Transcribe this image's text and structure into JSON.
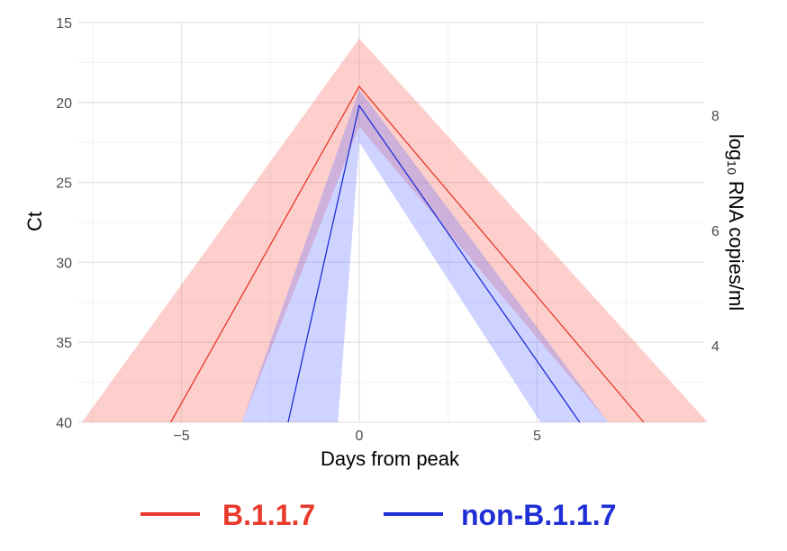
{
  "chart_data": {
    "type": "line",
    "xlabel": "Days from peak",
    "ylabel": "Ct",
    "y2label": "log₁₀ RNA copies/ml",
    "xlim": [
      -7.9,
      9.7
    ],
    "ylim": [
      15,
      40
    ],
    "y_inverted": true,
    "xticks": [
      -5,
      0,
      5
    ],
    "xtick_labels": [
      "−5",
      "0",
      "5"
    ],
    "yticks": [
      15,
      20,
      25,
      30,
      35,
      40
    ],
    "y2ticks": [
      {
        "ct": 20.8,
        "label": "8"
      },
      {
        "ct": 28.0,
        "label": "6"
      },
      {
        "ct": 35.2,
        "label": "4"
      }
    ],
    "grid": true,
    "legend_position": "bottom",
    "series": [
      {
        "name": "B.1.1.7",
        "color": "#e8392a",
        "fill": "rgba(248,118,109,0.35)",
        "points": [
          [
            -5.3,
            40
          ],
          [
            0,
            19
          ],
          [
            8.0,
            40
          ]
        ],
        "band_upper": [
          [
            -7.8,
            40
          ],
          [
            0,
            16
          ],
          [
            9.8,
            40
          ]
        ],
        "band_lower": [
          [
            -3.3,
            40
          ],
          [
            0,
            21.5
          ],
          [
            7.0,
            40
          ]
        ]
      },
      {
        "name": "non-B.1.1.7",
        "color": "#1f2fd6",
        "fill": "rgba(97,110,255,0.30)",
        "points": [
          [
            -2.0,
            40
          ],
          [
            0,
            20.2
          ],
          [
            6.2,
            40
          ]
        ],
        "band_upper": [
          [
            -3.3,
            40
          ],
          [
            0,
            19.2
          ],
          [
            7.0,
            40
          ]
        ],
        "band_lower": [
          [
            -0.6,
            40
          ],
          [
            0,
            22.5
          ],
          [
            5.1,
            40
          ]
        ]
      }
    ]
  },
  "legend": {
    "items": [
      {
        "label": "B.1.1.7",
        "color": "#e8392a"
      },
      {
        "label": "non-B.1.1.7",
        "color": "#1f2fd6"
      }
    ]
  }
}
